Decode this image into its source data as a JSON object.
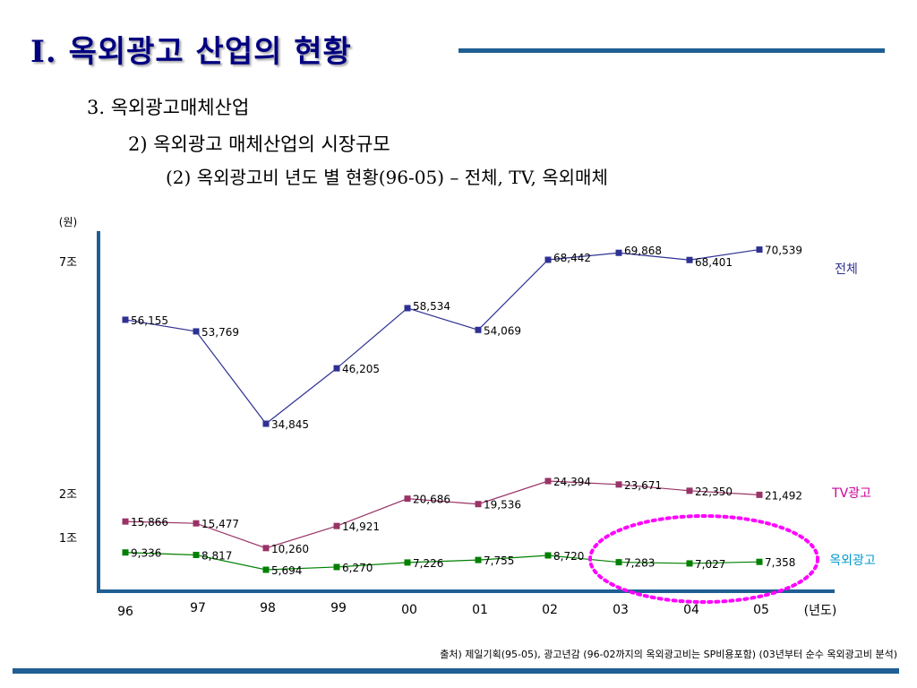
{
  "slide": {
    "title": "I.  옥외광고 산업의 현황",
    "sub1": "3. 옥외광고매체산업",
    "sub2": "2) 옥외광고 매체산업의 시장규모",
    "sub3": "(2) 옥외광고비 년도 별 현황(96-05) – 전체, TV, 옥외매체",
    "source": "출처) 제일기획(95-05), 광고년감 (96-02까지의 옥외광고비는 SP비용포함) (03년부터 순수 옥외광고비 분석)"
  },
  "chart_data": {
    "type": "line",
    "ylabel": "(원)",
    "xlabel": "(년도)",
    "categories": [
      "96",
      "97",
      "98",
      "99",
      "00",
      "01",
      "02",
      "03",
      "04",
      "05"
    ],
    "y_tick_labels": [
      {
        "value": 70000,
        "label": "7조"
      },
      {
        "value": 20000,
        "label": "2조"
      },
      {
        "value": 10000,
        "label": "1조"
      }
    ],
    "series": [
      {
        "name": "전체",
        "color": "#2e3192",
        "label_color": "#2e3192",
        "values": [
          56155,
          53769,
          34845,
          46205,
          58534,
          54069,
          68442,
          69868,
          68401,
          70539
        ],
        "value_labels": [
          "56,155",
          "53,769",
          "34,845",
          "46,205",
          "58,534",
          "54,069",
          "68,442",
          "69,868",
          "68,401",
          "70,539"
        ]
      },
      {
        "name": "TV광고",
        "color": "#993366",
        "label_color": "#cc0099",
        "values": [
          15866,
          15477,
          10260,
          14921,
          20686,
          19536,
          24394,
          23671,
          22350,
          21492
        ],
        "value_labels": [
          "15,866",
          "15,477",
          "10,260",
          "14,921",
          "20,686",
          "19,536",
          "24,394",
          "23,671",
          "22,350",
          "21,492"
        ]
      },
      {
        "name": "옥외광고",
        "color": "#008000",
        "label_color": "#0099cc",
        "values": [
          9336,
          8817,
          5694,
          6270,
          7226,
          7755,
          8720,
          7283,
          7027,
          7358
        ],
        "value_labels": [
          "9,336",
          "8,817",
          "5,694",
          "6,270",
          "7,226",
          "7,755",
          "8,720",
          "7,283",
          "7,027",
          "7,358"
        ]
      }
    ],
    "highlight": {
      "shape": "dotted ellipse",
      "color": "#ff00ff",
      "categories": [
        "03",
        "04",
        "05"
      ],
      "series": "옥외광고"
    },
    "grid": false
  }
}
